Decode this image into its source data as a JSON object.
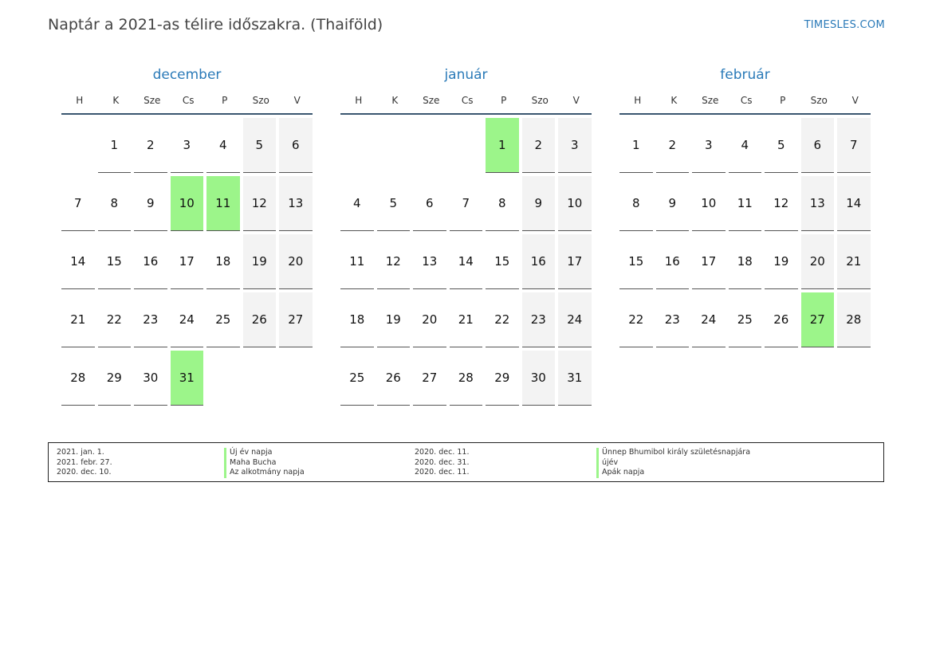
{
  "header": {
    "title": "Naptár a 2021-as télire időszakra. (Thaiföld)",
    "brand": "TIMESLES.COM"
  },
  "weekdays": [
    "H",
    "K",
    "Sze",
    "Cs",
    "P",
    "Szo",
    "V"
  ],
  "months": [
    {
      "name": "december",
      "start_offset": 1,
      "days": 31,
      "holidays": [
        10,
        11,
        31
      ]
    },
    {
      "name": "január",
      "start_offset": 4,
      "days": 31,
      "holidays": [
        1
      ]
    },
    {
      "name": "február",
      "start_offset": 0,
      "days": 28,
      "holidays": [
        27
      ]
    }
  ],
  "legend": [
    {
      "date": "2021. jan. 1.",
      "name": "Új év napja"
    },
    {
      "date": "2021. febr. 27.",
      "name": "Maha Bucha"
    },
    {
      "date": "2020. dec. 10.",
      "name": "Az alkotmány napja"
    },
    {
      "date": "2020. dec. 11.",
      "name": "Ünnep Bhumibol király születésnapjára"
    },
    {
      "date": "2020. dec. 31.",
      "name": "újév"
    },
    {
      "date": "2020. dec. 11.",
      "name": "Apák napja"
    }
  ],
  "colors": {
    "holiday": "#9cf58a",
    "weekend": "#f3f3f3",
    "accent": "#2a7ab8"
  }
}
